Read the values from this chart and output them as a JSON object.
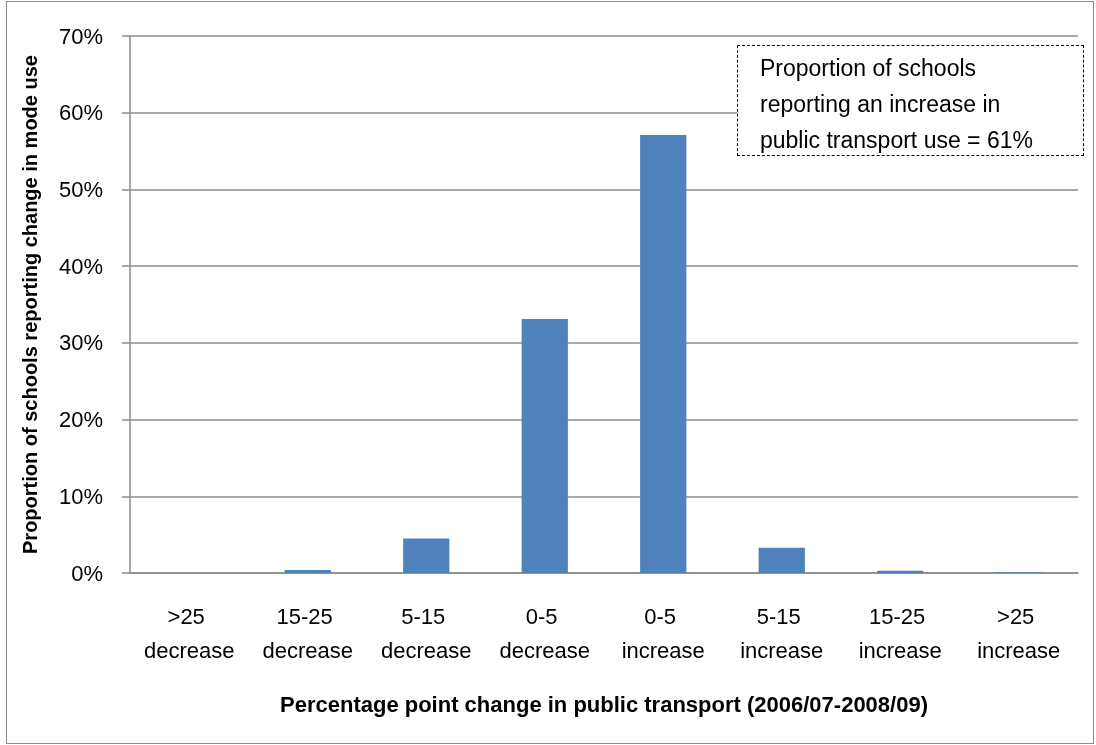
{
  "chart_data": {
    "type": "bar",
    "categories": [
      ">25 decrease",
      "15-25 decrease",
      "5-15 decrease",
      "0-5 decrease",
      "0-5 increase",
      "5-15 increase",
      "15-25 increase",
      ">25 increase"
    ],
    "values": [
      0,
      0.4,
      4.5,
      33.1,
      57.1,
      3.3,
      0.3,
      0.1
    ],
    "color": "#4f81bd",
    "xlabel": "Percentage point change in public transport (2006/07-2008/09)",
    "ylabel": "Proportion of schools reporting change in mode use",
    "ylim": [
      0,
      70
    ],
    "yticks": [
      {
        "value": 0,
        "label": "0%"
      },
      {
        "value": 10,
        "label": "10%"
      },
      {
        "value": 20,
        "label": "20%"
      },
      {
        "value": 30,
        "label": "30%"
      },
      {
        "value": 40,
        "label": "40%"
      },
      {
        "value": 50,
        "label": "50%"
      },
      {
        "value": 60,
        "label": "60%"
      },
      {
        "value": 70,
        "label": "70%"
      }
    ],
    "grid": "y",
    "annotations": [
      "Proportion of schools reporting an increase in public transport use = 61%"
    ]
  }
}
